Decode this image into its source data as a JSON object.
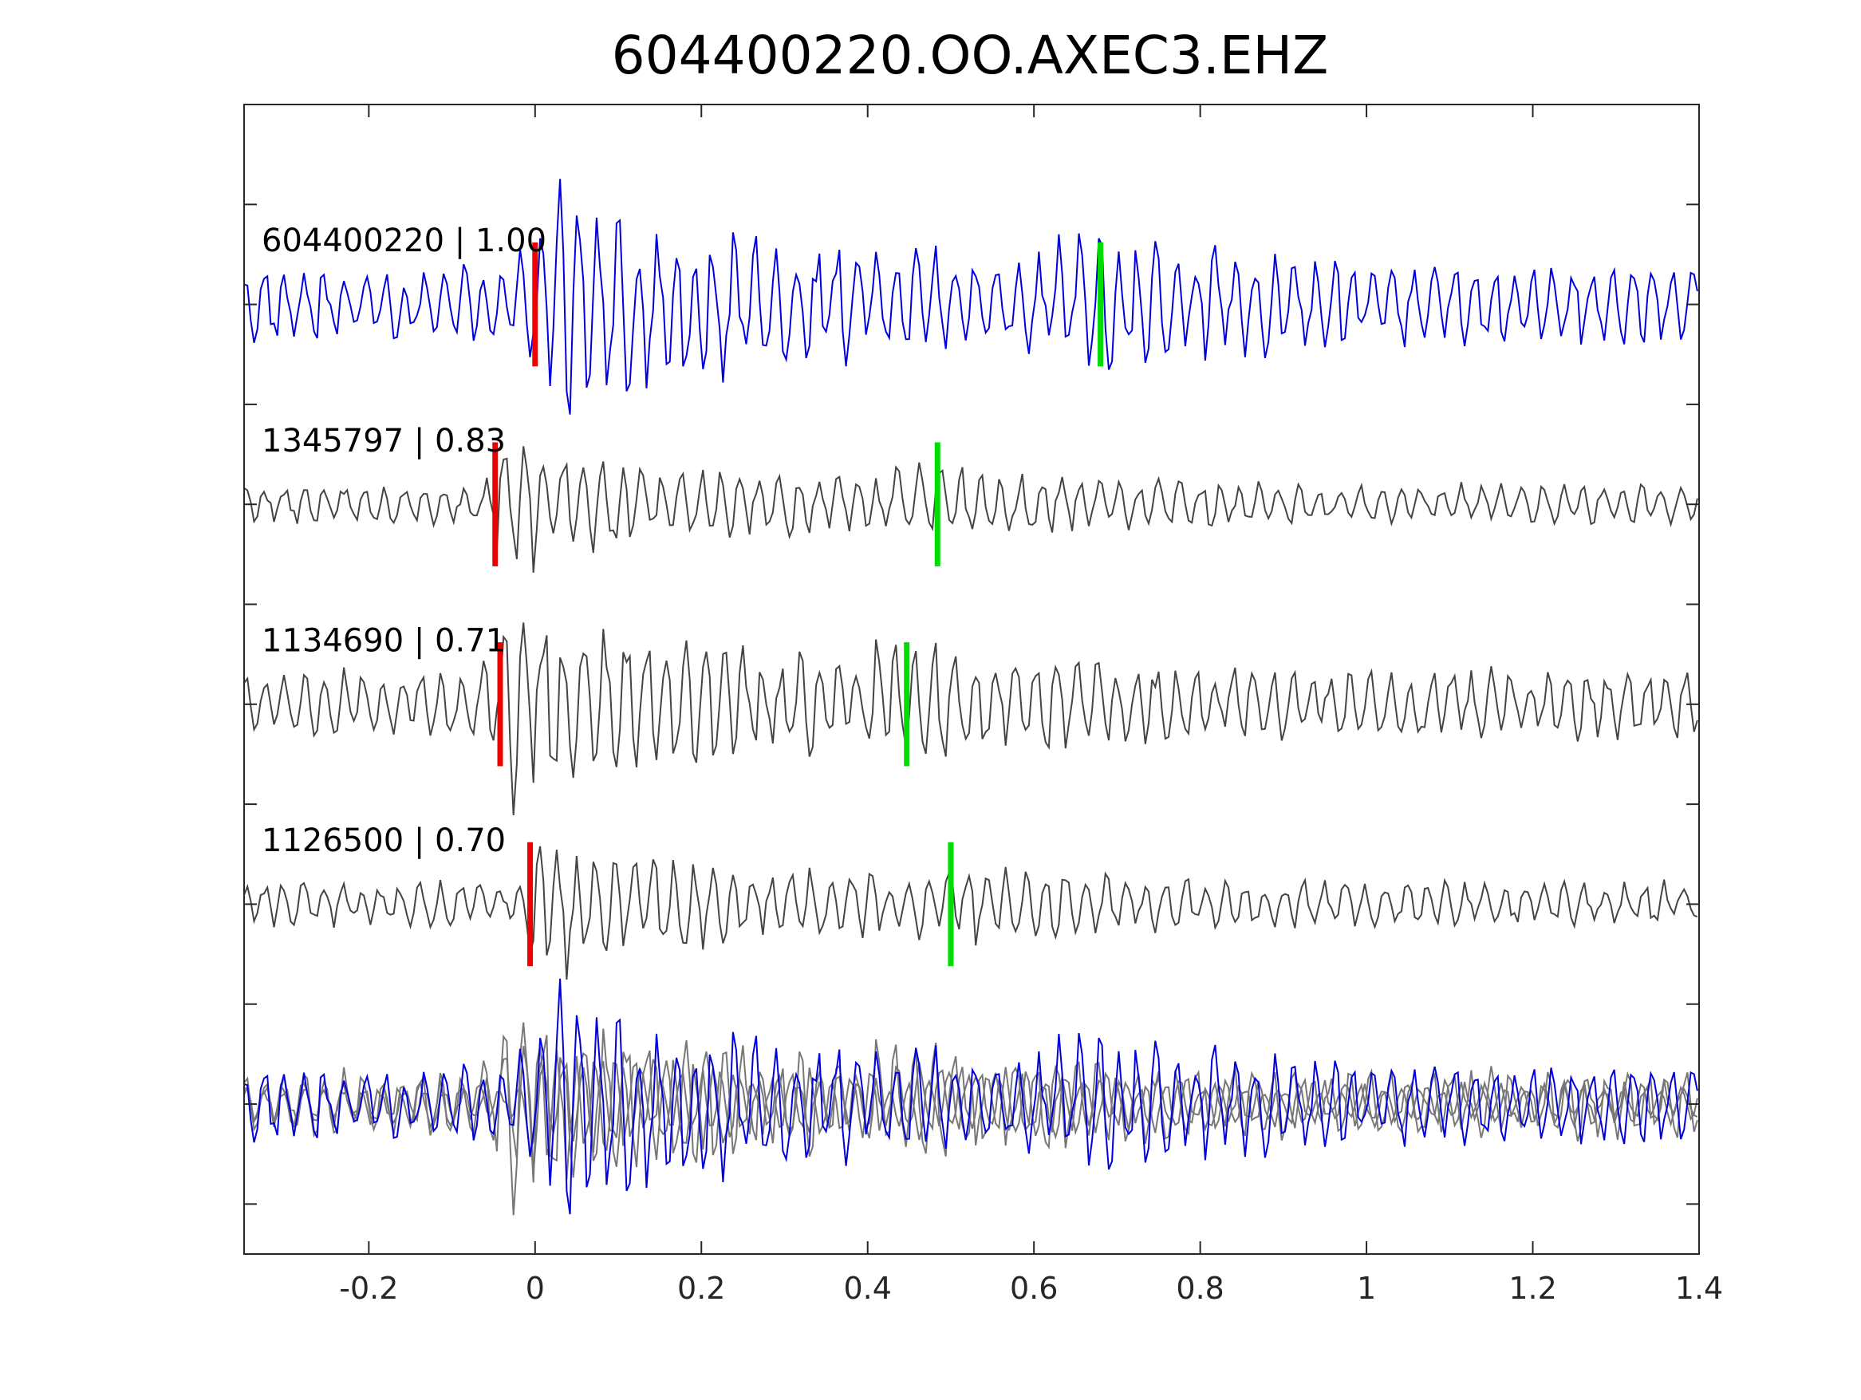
{
  "chart_data": {
    "type": "line",
    "title": "604400220.OO.AXEC3.EHZ",
    "xlabel": "",
    "ylabel": "",
    "xlim": [
      -0.35,
      1.4
    ],
    "x_ticks": [
      -0.2,
      0,
      0.2,
      0.4,
      0.6,
      0.8,
      1,
      1.2,
      1.4
    ],
    "x_tick_labels": [
      "-0.2",
      "0",
      "0.2",
      "0.4",
      "0.6",
      "0.8",
      "1",
      "1.2",
      "1.4"
    ],
    "y_tick_count": 11,
    "y_tick_labels_shown": false,
    "grid": false,
    "legend": "none",
    "traces": [
      {
        "event_id": "604400220",
        "correlation": "1.00",
        "label": "604400220 | 1.00",
        "color": "#0000dd",
        "offset_slot": 2,
        "p_pick_time": 0.0,
        "s_pick_time": 0.68,
        "relative_amplitude": 1.0
      },
      {
        "event_id": "1345797",
        "correlation": "0.83",
        "label": "1345797 | 0.83",
        "color": "#444444",
        "offset_slot": 4,
        "p_pick_time": -0.048,
        "s_pick_time": 0.484,
        "relative_amplitude": 0.5
      },
      {
        "event_id": "1134690",
        "correlation": "0.71",
        "label": "1134690 | 0.71",
        "color": "#444444",
        "offset_slot": 6,
        "p_pick_time": -0.042,
        "s_pick_time": 0.447,
        "relative_amplitude": 0.85
      },
      {
        "event_id": "1126500",
        "correlation": "0.70",
        "label": "1126500 | 0.70",
        "color": "#444444",
        "offset_slot": 8,
        "p_pick_time": -0.006,
        "s_pick_time": 0.5,
        "relative_amplitude": 0.55
      }
    ],
    "stack": {
      "offset_slot": 10,
      "template_color": "#0000dd",
      "other_color": "#777777"
    },
    "pick_colors": {
      "p": "#ee0000",
      "s": "#00dd00"
    }
  }
}
